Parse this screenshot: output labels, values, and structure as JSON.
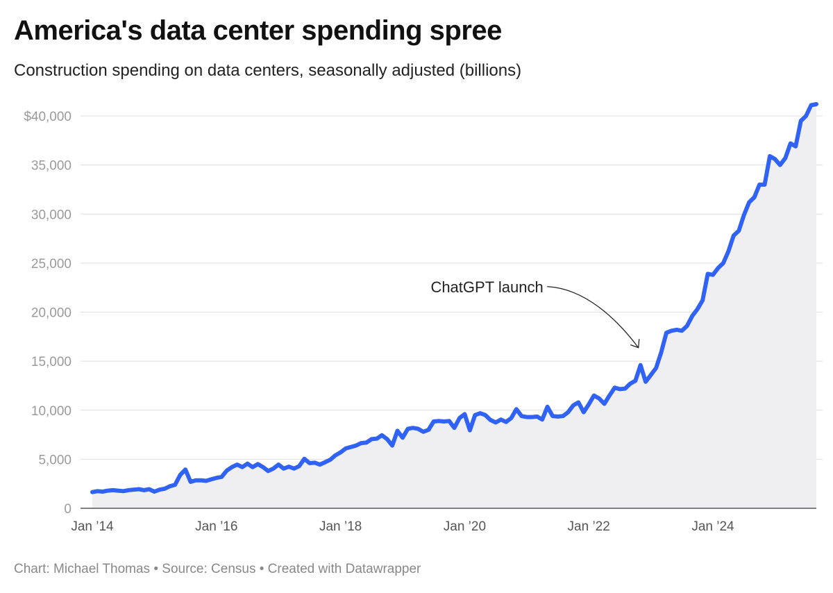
{
  "header": {
    "title": "America's data center spending spree",
    "subtitle": "Construction spending on data centers, seasonally adjusted (billions)"
  },
  "footer": {
    "text": "Chart: Michael Thomas • Source: Census • Created with Datawrapper"
  },
  "colors": {
    "line": "#2f62f5",
    "area": "#efeff1",
    "grid": "#dddddd",
    "baseline": "#333333"
  },
  "chart_data": {
    "type": "area",
    "title": "America's data center spending spree",
    "subtitle": "Construction spending on data centers, seasonally adjusted (billions)",
    "xlabel": "",
    "ylabel": "",
    "x_start": "2014-01",
    "x_step": "month",
    "ylim": [
      0,
      42000
    ],
    "yticks": [
      0,
      5000,
      10000,
      15000,
      20000,
      25000,
      30000,
      35000,
      40000
    ],
    "ytick_labels": [
      "0",
      "5,000",
      "10,000",
      "15,000",
      "20,000",
      "25,000",
      "30,000",
      "35,000",
      "$40,000"
    ],
    "xticks": [
      {
        "date": "2014-01",
        "label": "Jan ’14"
      },
      {
        "date": "2016-01",
        "label": "Jan ’16"
      },
      {
        "date": "2018-01",
        "label": "Jan ’18"
      },
      {
        "date": "2020-01",
        "label": "Jan ’20"
      },
      {
        "date": "2022-01",
        "label": "Jan ’22"
      },
      {
        "date": "2024-01",
        "label": "Jan ’24"
      }
    ],
    "grid": true,
    "annotations": [
      {
        "label": "ChatGPT launch",
        "date": "2022-11"
      }
    ],
    "values": [
      1650,
      1750,
      1700,
      1800,
      1850,
      1800,
      1750,
      1850,
      1900,
      1950,
      1850,
      1950,
      1700,
      1900,
      2000,
      2250,
      2400,
      3400,
      3950,
      2700,
      2850,
      2850,
      2800,
      2950,
      3100,
      3200,
      3850,
      4200,
      4450,
      4200,
      4550,
      4200,
      4500,
      4200,
      3800,
      4050,
      4450,
      4050,
      4250,
      4050,
      4300,
      5050,
      4600,
      4650,
      4450,
      4700,
      4950,
      5400,
      5700,
      6100,
      6250,
      6400,
      6650,
      6700,
      7050,
      7100,
      7450,
      7050,
      6400,
      7900,
      7200,
      8100,
      8200,
      8100,
      7800,
      8000,
      8850,
      8900,
      8850,
      8900,
      8200,
      9200,
      9600,
      7950,
      9500,
      9700,
      9500,
      9000,
      8750,
      9050,
      8800,
      9200,
      10100,
      9400,
      9300,
      9300,
      9350,
      9050,
      10350,
      9400,
      9350,
      9400,
      9800,
      10500,
      10800,
      9800,
      10600,
      11500,
      11200,
      10650,
      11500,
      12300,
      12150,
      12200,
      12700,
      13000,
      14600,
      12900,
      13600,
      14300,
      15900,
      17900,
      18100,
      18200,
      18100,
      18600,
      19600,
      20300,
      21200,
      23900,
      23800,
      24500,
      25000,
      26200,
      27800,
      28300,
      29900,
      31200,
      31700,
      33000,
      33000,
      35900,
      35600,
      35000,
      35700,
      37200,
      36900,
      39500,
      40000,
      41100,
      41200
    ]
  }
}
